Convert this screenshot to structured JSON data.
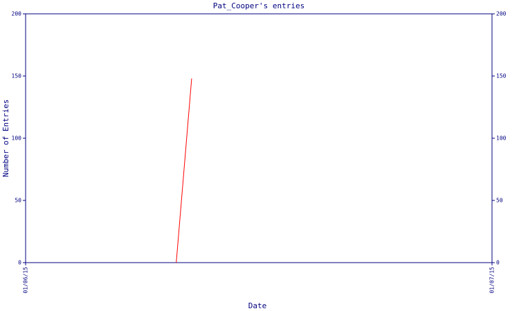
{
  "chart_data": {
    "type": "line",
    "title": "Pat_Cooper's entries",
    "x_label": "Date",
    "y_label": "Number of Entries",
    "x": [
      0.323,
      0.356
    ],
    "series": [
      {
        "name": "Pat_Cooper",
        "color": "#ff0000",
        "values": [
          0,
          148
        ]
      }
    ],
    "xlim": [
      0,
      1
    ],
    "xticks": [
      {
        "value": 0,
        "label": "01/06/15"
      },
      {
        "value": 1,
        "label": "01/07/15"
      }
    ],
    "ylim": [
      0,
      200
    ],
    "yticks": [
      0,
      50,
      100,
      150,
      200
    ],
    "y2lim": [
      0,
      200
    ],
    "y2ticks": [
      0,
      50,
      100,
      150,
      200
    ],
    "axis_color": "#000080",
    "grid": false
  }
}
